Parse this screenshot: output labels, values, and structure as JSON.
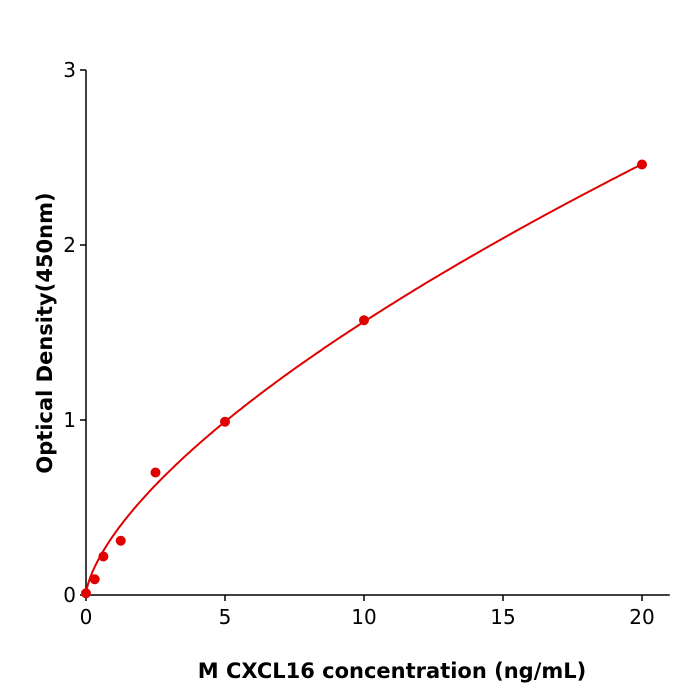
{
  "chart_data": {
    "type": "scatter",
    "title": "",
    "xlabel": "M  CXCL16 concentration (ng/mL)",
    "ylabel": "Optical Density(450nm)",
    "xlim": [
      0,
      21
    ],
    "ylim": [
      0,
      3
    ],
    "xticks": [
      "0",
      "5",
      "10",
      "15",
      "20"
    ],
    "yticks": [
      "0",
      "1",
      "2",
      "3"
    ],
    "grid": false,
    "legend": "none",
    "color": "#e00000",
    "points": {
      "x": [
        0,
        0.3125,
        0.625,
        1.25,
        2.5,
        5,
        10,
        20
      ],
      "y": [
        0.01,
        0.09,
        0.22,
        0.31,
        0.7,
        0.99,
        1.57,
        2.46
      ]
    },
    "fit_curve": {
      "type": "line",
      "form": "power",
      "a": 0.344,
      "b": 0.657
    }
  }
}
